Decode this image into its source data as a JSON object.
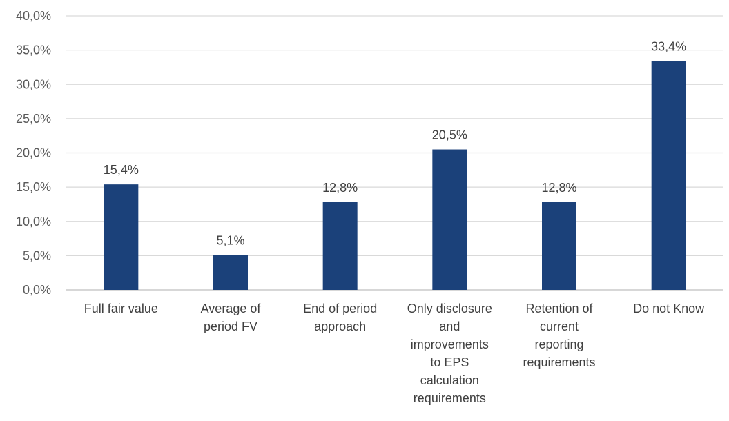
{
  "chart_data": {
    "type": "bar",
    "title": "",
    "xlabel": "",
    "ylabel": "",
    "categories": [
      "Full fair value",
      "Average of period FV",
      "End of period approach",
      "Only disclosure and improvements to EPS calculation requirements",
      "Retention of current reporting requirements",
      "Do not Know"
    ],
    "category_lines": [
      [
        "Full fair value"
      ],
      [
        "Average of",
        "period FV"
      ],
      [
        "End of period",
        "approach"
      ],
      [
        "Only disclosure",
        "and",
        "improvements",
        "to EPS",
        "calculation",
        "requirements"
      ],
      [
        "Retention of",
        "current",
        "reporting",
        "requirements"
      ],
      [
        "Do not Know"
      ]
    ],
    "values": [
      15.4,
      5.1,
      12.8,
      20.5,
      12.8,
      33.4
    ],
    "data_labels": [
      "15,4%",
      "5,1%",
      "12,8%",
      "20,5%",
      "12,8%",
      "33,4%"
    ],
    "ylim": [
      0,
      40
    ],
    "y_ticks": [
      0,
      5,
      10,
      15,
      20,
      25,
      30,
      35,
      40
    ],
    "y_tick_labels": [
      "0,0%",
      "5,0%",
      "10,0%",
      "15,0%",
      "20,0%",
      "25,0%",
      "30,0%",
      "35,0%",
      "40,0%"
    ],
    "grid": true,
    "legend": "none",
    "colors": {
      "bar": "#1b417a",
      "grid": "#d9d9d9",
      "axis": "#bfbfbf"
    }
  }
}
